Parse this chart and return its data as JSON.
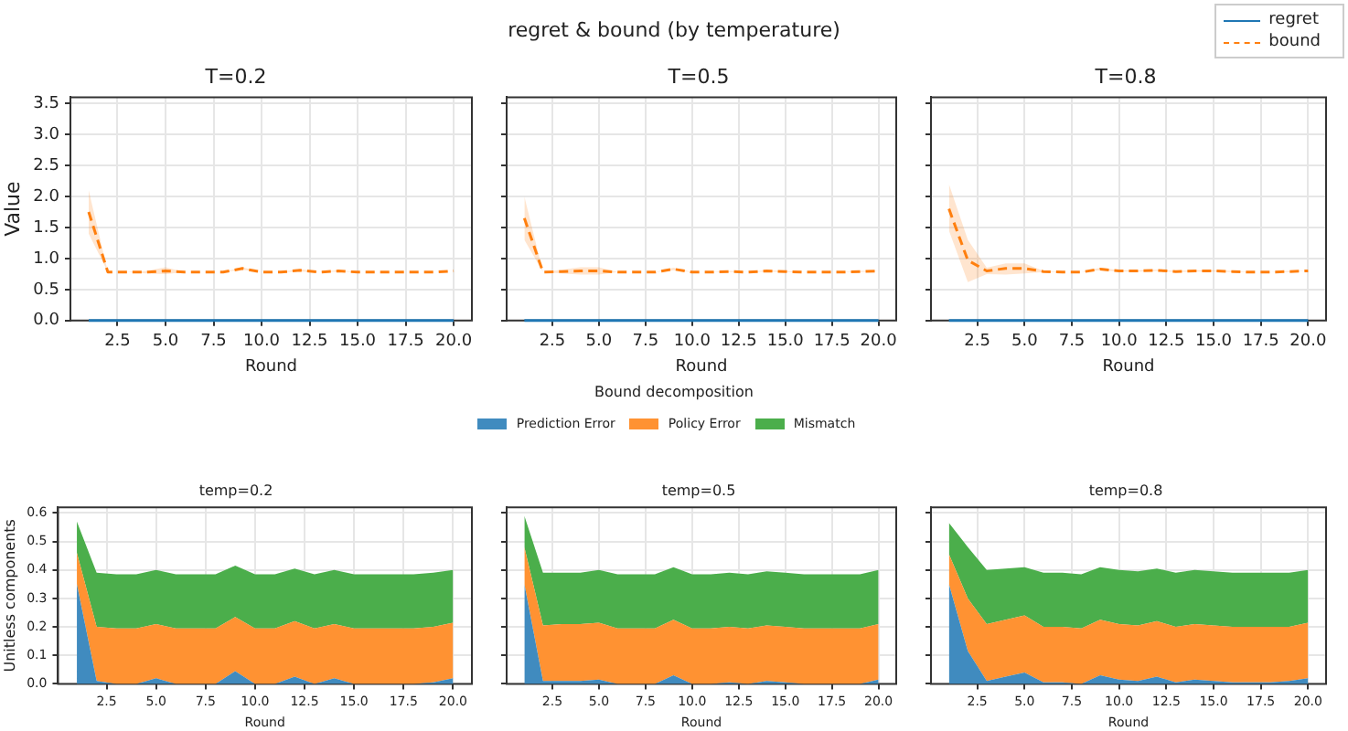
{
  "chart_data": [
    {
      "type": "line",
      "title": "T=0.2",
      "xlabel": "Round",
      "ylabel": "Value",
      "annotations": [
        "regret & bound (by temperature)"
      ],
      "legend": "top right",
      "grid": true,
      "x": [
        1,
        2,
        3,
        4,
        5,
        6,
        7,
        8,
        9,
        10,
        11,
        12,
        13,
        14,
        15,
        16,
        17,
        18,
        19,
        20
      ],
      "xlim": [
        0.05,
        20.95
      ],
      "xticks": [
        2.5,
        {
          "value": 5,
          "label": "5.0"
        },
        7.5,
        {
          "value": 10,
          "label": "10.0"
        },
        12.5,
        {
          "value": 15,
          "label": "15.0"
        },
        17.5,
        {
          "value": 20,
          "label": "20.0"
        }
      ],
      "ylim": [
        0,
        3.6
      ],
      "yticks": [
        {
          "value": 0,
          "label": "0.0"
        },
        0.5,
        {
          "value": 1,
          "label": "1.0"
        },
        1.5,
        {
          "value": 2,
          "label": "2.0"
        },
        2.5,
        {
          "value": 3,
          "label": "3.0"
        },
        3.5
      ],
      "series": [
        {
          "name": "regret",
          "color": "#1f77b4",
          "line_style": "solid",
          "values": [
            0,
            0,
            0,
            0,
            0,
            0,
            0,
            0,
            0,
            0,
            0,
            0,
            0,
            0,
            0,
            0,
            0,
            0,
            0,
            0
          ]
        },
        {
          "name": "bound",
          "color": "#ff7f0e",
          "line_style": "dashed",
          "values": [
            1.75,
            0.78,
            0.78,
            0.78,
            0.8,
            0.78,
            0.78,
            0.78,
            0.84,
            0.78,
            0.78,
            0.81,
            0.78,
            0.8,
            0.78,
            0.78,
            0.78,
            0.78,
            0.78,
            0.8
          ],
          "lower": [
            1.4,
            0.78,
            0.78,
            0.76,
            0.75,
            0.78,
            0.78,
            0.78,
            0.82,
            0.78,
            0.78,
            0.79,
            0.78,
            0.79,
            0.78,
            0.78,
            0.78,
            0.78,
            0.78,
            0.8
          ],
          "upper": [
            2.1,
            0.78,
            0.78,
            0.8,
            0.86,
            0.78,
            0.78,
            0.78,
            0.86,
            0.78,
            0.78,
            0.83,
            0.78,
            0.81,
            0.78,
            0.78,
            0.78,
            0.78,
            0.78,
            0.8
          ]
        }
      ]
    },
    {
      "type": "line",
      "title": "T=0.5",
      "xlabel": "Round",
      "grid": true,
      "tick_labels": "x",
      "x": [
        1,
        2,
        3,
        4,
        5,
        6,
        7,
        8,
        9,
        10,
        11,
        12,
        13,
        14,
        15,
        16,
        17,
        18,
        19,
        20
      ],
      "xlim": [
        0.05,
        20.95
      ],
      "xticks": [
        2.5,
        {
          "value": 5,
          "label": "5.0"
        },
        7.5,
        {
          "value": 10,
          "label": "10.0"
        },
        12.5,
        {
          "value": 15,
          "label": "15.0"
        },
        17.5,
        {
          "value": 20,
          "label": "20.0"
        }
      ],
      "ylim": [
        0,
        3.6
      ],
      "yticks": [
        0,
        0.5,
        1,
        1.5,
        2,
        2.5,
        3,
        3.5
      ],
      "series": [
        {
          "color": "#1f77b4",
          "line_style": "solid",
          "values": [
            0,
            0,
            0,
            0,
            0,
            0,
            0,
            0,
            0,
            0,
            0,
            0,
            0,
            0,
            0,
            0,
            0,
            0,
            0,
            0
          ]
        },
        {
          "color": "#ff7f0e",
          "line_style": "dashed",
          "values": [
            1.65,
            0.78,
            0.79,
            0.8,
            0.8,
            0.78,
            0.78,
            0.78,
            0.83,
            0.78,
            0.78,
            0.79,
            0.78,
            0.8,
            0.79,
            0.78,
            0.78,
            0.78,
            0.79,
            0.8
          ],
          "lower": [
            1.3,
            0.78,
            0.76,
            0.74,
            0.74,
            0.78,
            0.78,
            0.78,
            0.81,
            0.78,
            0.78,
            0.78,
            0.78,
            0.79,
            0.78,
            0.78,
            0.78,
            0.78,
            0.78,
            0.8
          ],
          "upper": [
            2.0,
            0.78,
            0.82,
            0.86,
            0.86,
            0.78,
            0.78,
            0.78,
            0.85,
            0.78,
            0.78,
            0.8,
            0.78,
            0.81,
            0.8,
            0.78,
            0.78,
            0.78,
            0.8,
            0.8
          ]
        }
      ]
    },
    {
      "type": "line",
      "title": "T=0.8",
      "xlabel": "Round",
      "grid": true,
      "tick_labels": "x",
      "x": [
        1,
        2,
        3,
        4,
        5,
        6,
        7,
        8,
        9,
        10,
        11,
        12,
        13,
        14,
        15,
        16,
        17,
        18,
        19,
        20
      ],
      "xlim": [
        0.05,
        20.95
      ],
      "xticks": [
        2.5,
        {
          "value": 5,
          "label": "5.0"
        },
        7.5,
        {
          "value": 10,
          "label": "10.0"
        },
        12.5,
        {
          "value": 15,
          "label": "15.0"
        },
        17.5,
        {
          "value": 20,
          "label": "20.0"
        }
      ],
      "ylim": [
        0,
        3.6
      ],
      "yticks": [
        0,
        0.5,
        1,
        1.5,
        2,
        2.5,
        3,
        3.5
      ],
      "series": [
        {
          "color": "#1f77b4",
          "line_style": "solid",
          "values": [
            0,
            0,
            0,
            0,
            0,
            0,
            0,
            0,
            0,
            0,
            0,
            0,
            0,
            0,
            0,
            0,
            0,
            0,
            0,
            0
          ]
        },
        {
          "color": "#ff7f0e",
          "line_style": "dashed",
          "values": [
            1.8,
            0.97,
            0.8,
            0.84,
            0.84,
            0.79,
            0.78,
            0.78,
            0.83,
            0.8,
            0.8,
            0.81,
            0.79,
            0.8,
            0.8,
            0.79,
            0.78,
            0.78,
            0.79,
            0.8
          ],
          "lower": [
            1.45,
            0.62,
            0.75,
            0.74,
            0.76,
            0.78,
            0.78,
            0.78,
            0.81,
            0.79,
            0.79,
            0.8,
            0.78,
            0.79,
            0.79,
            0.78,
            0.78,
            0.78,
            0.78,
            0.8
          ],
          "upper": [
            2.2,
            1.3,
            0.85,
            0.92,
            0.92,
            0.8,
            0.78,
            0.78,
            0.85,
            0.81,
            0.81,
            0.82,
            0.8,
            0.81,
            0.81,
            0.8,
            0.78,
            0.78,
            0.8,
            0.8
          ]
        }
      ]
    },
    {
      "type": "area",
      "stacked": true,
      "title": "temp=0.2",
      "xlabel": "Round",
      "ylabel": "Unitless components",
      "annotations": [
        "Bound decomposition"
      ],
      "legend": "top",
      "grid": true,
      "x": [
        1,
        2,
        3,
        4,
        5,
        6,
        7,
        8,
        9,
        10,
        11,
        12,
        13,
        14,
        15,
        16,
        17,
        18,
        19,
        20
      ],
      "xlim": [
        0.05,
        20.95
      ],
      "xticks": [
        2.5,
        {
          "value": 5,
          "label": "5.0"
        },
        7.5,
        {
          "value": 10,
          "label": "10.0"
        },
        12.5,
        {
          "value": 15,
          "label": "15.0"
        },
        17.5,
        {
          "value": 20,
          "label": "20.0"
        }
      ],
      "ylim": [
        0,
        0.62
      ],
      "yticks": [
        {
          "value": 0,
          "label": "0.0"
        },
        0.1,
        0.2,
        0.3,
        0.4,
        0.5,
        0.6
      ],
      "series": [
        {
          "name": "Prediction Error",
          "color": "#408bbf",
          "values": [
            0.35,
            0.01,
            0,
            0,
            0.02,
            0,
            0,
            0,
            0.045,
            0,
            0,
            0.025,
            0,
            0.02,
            0,
            0,
            0,
            0,
            0.005,
            0.02
          ]
        },
        {
          "name": "Policy Error",
          "color": "#ff9232",
          "values": [
            0.11,
            0.19,
            0.195,
            0.195,
            0.19,
            0.195,
            0.195,
            0.195,
            0.19,
            0.195,
            0.195,
            0.195,
            0.195,
            0.19,
            0.195,
            0.195,
            0.195,
            0.195,
            0.195,
            0.195
          ]
        },
        {
          "name": "Mismatch",
          "color": "#4bae4b",
          "values": [
            0.11,
            0.19,
            0.19,
            0.19,
            0.19,
            0.19,
            0.19,
            0.19,
            0.18,
            0.19,
            0.19,
            0.185,
            0.19,
            0.19,
            0.19,
            0.19,
            0.19,
            0.19,
            0.19,
            0.185
          ]
        }
      ]
    },
    {
      "type": "area",
      "stacked": true,
      "title": "temp=0.5",
      "xlabel": "Round",
      "grid": true,
      "tick_labels": "x",
      "x": [
        1,
        2,
        3,
        4,
        5,
        6,
        7,
        8,
        9,
        10,
        11,
        12,
        13,
        14,
        15,
        16,
        17,
        18,
        19,
        20
      ],
      "xlim": [
        0.05,
        20.95
      ],
      "xticks": [
        2.5,
        {
          "value": 5,
          "label": "5.0"
        },
        7.5,
        {
          "value": 10,
          "label": "10.0"
        },
        12.5,
        {
          "value": 15,
          "label": "15.0"
        },
        17.5,
        {
          "value": 20,
          "label": "20.0"
        }
      ],
      "ylim": [
        0,
        0.62
      ],
      "yticks": [
        0,
        0.1,
        0.2,
        0.3,
        0.4,
        0.5,
        0.6
      ],
      "series": [
        {
          "color": "#408bbf",
          "values": [
            0.35,
            0.01,
            0.01,
            0.01,
            0.015,
            0,
            0,
            0,
            0.03,
            0,
            0,
            0.005,
            0,
            0.01,
            0.005,
            0,
            0,
            0,
            0,
            0.015
          ]
        },
        {
          "color": "#ff9232",
          "values": [
            0.13,
            0.195,
            0.2,
            0.2,
            0.2,
            0.195,
            0.195,
            0.195,
            0.195,
            0.195,
            0.195,
            0.195,
            0.195,
            0.195,
            0.195,
            0.195,
            0.195,
            0.195,
            0.195,
            0.195
          ]
        },
        {
          "color": "#4bae4b",
          "values": [
            0.11,
            0.185,
            0.18,
            0.18,
            0.185,
            0.19,
            0.19,
            0.19,
            0.185,
            0.19,
            0.19,
            0.19,
            0.19,
            0.19,
            0.19,
            0.19,
            0.19,
            0.19,
            0.19,
            0.19
          ]
        }
      ]
    },
    {
      "type": "area",
      "stacked": true,
      "title": "temp=0.8",
      "xlabel": "Round",
      "grid": true,
      "tick_labels": "x",
      "x": [
        1,
        2,
        3,
        4,
        5,
        6,
        7,
        8,
        9,
        10,
        11,
        12,
        13,
        14,
        15,
        16,
        17,
        18,
        19,
        20
      ],
      "xlim": [
        0.05,
        20.95
      ],
      "xticks": [
        2.5,
        {
          "value": 5,
          "label": "5.0"
        },
        7.5,
        {
          "value": 10,
          "label": "10.0"
        },
        12.5,
        {
          "value": 15,
          "label": "15.0"
        },
        17.5,
        {
          "value": 20,
          "label": "20.0"
        }
      ],
      "ylim": [
        0,
        0.62
      ],
      "yticks": [
        0,
        0.1,
        0.2,
        0.3,
        0.4,
        0.5,
        0.6
      ],
      "series": [
        {
          "color": "#408bbf",
          "values": [
            0.35,
            0.115,
            0.01,
            0.025,
            0.04,
            0.005,
            0.005,
            0,
            0.03,
            0.015,
            0.01,
            0.025,
            0.005,
            0.015,
            0.01,
            0.005,
            0.005,
            0.005,
            0.01,
            0.02
          ]
        },
        {
          "color": "#ff9232",
          "values": [
            0.105,
            0.185,
            0.2,
            0.2,
            0.2,
            0.195,
            0.195,
            0.195,
            0.195,
            0.195,
            0.195,
            0.195,
            0.195,
            0.195,
            0.195,
            0.195,
            0.195,
            0.195,
            0.19,
            0.195
          ]
        },
        {
          "color": "#4bae4b",
          "values": [
            0.11,
            0.18,
            0.19,
            0.18,
            0.17,
            0.19,
            0.19,
            0.19,
            0.185,
            0.19,
            0.19,
            0.185,
            0.19,
            0.19,
            0.19,
            0.19,
            0.19,
            0.19,
            0.19,
            0.185
          ]
        }
      ]
    }
  ]
}
